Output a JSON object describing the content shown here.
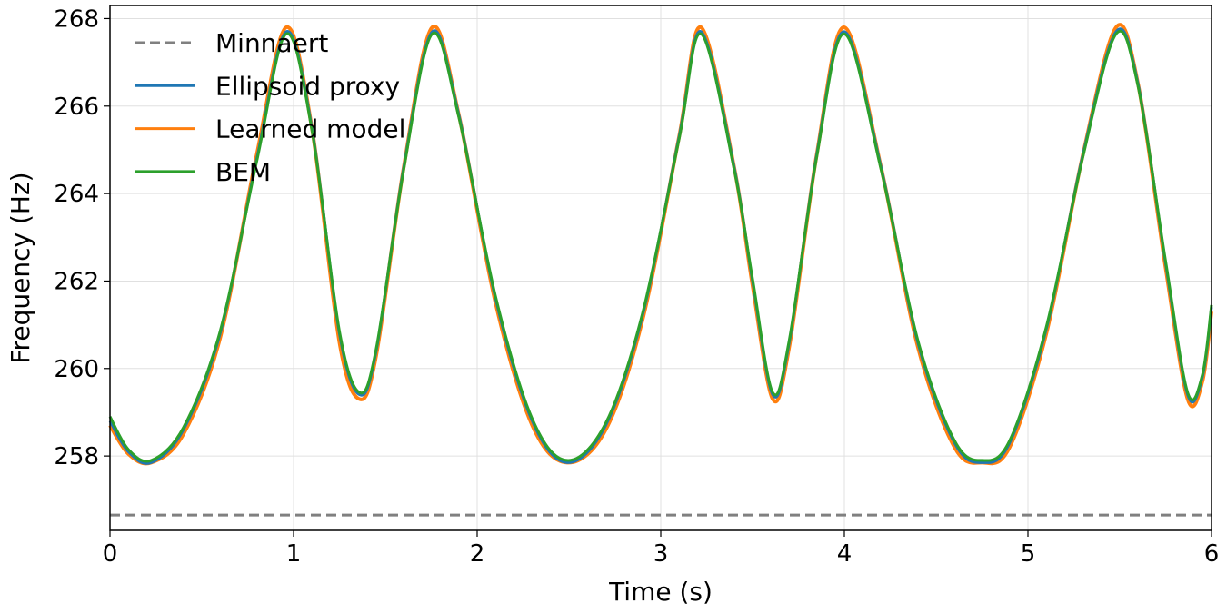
{
  "chart_data": {
    "type": "line",
    "xlabel": "Time (s)",
    "ylabel": "Frequency (Hz)",
    "xlim": [
      0,
      6
    ],
    "ylim": [
      256.3,
      268.3
    ],
    "xticks": [
      0,
      1,
      2,
      3,
      4,
      5,
      6
    ],
    "yticks": [
      258,
      260,
      262,
      264,
      266,
      268
    ],
    "grid": true,
    "legend_position": "top-left",
    "series": [
      {
        "name": "Minnaert",
        "color": "#808080",
        "style": "dashed",
        "x": [
          0,
          6
        ],
        "y": [
          256.65,
          256.65
        ]
      },
      {
        "name": "Ellipsoid proxy",
        "color": "#1f77b4",
        "style": "solid",
        "x": [
          0,
          0.1,
          0.225,
          0.4,
          0.6,
          0.8,
          0.96,
          1.1,
          1.25,
          1.36,
          1.45,
          1.6,
          1.755,
          1.9,
          2.1,
          2.3,
          2.49,
          2.7,
          2.9,
          3.1,
          3.22,
          3.4,
          3.5,
          3.61,
          3.7,
          3.85,
          4.0,
          4.2,
          4.4,
          4.6,
          4.75,
          4.9,
          5.1,
          5.3,
          5.48,
          5.6,
          5.75,
          5.87,
          5.95,
          6.0
        ],
        "y": [
          258.8,
          258.1,
          257.85,
          258.6,
          260.8,
          264.8,
          267.7,
          265.5,
          260.8,
          259.4,
          260.4,
          264.6,
          267.7,
          265.8,
          261.6,
          258.8,
          257.85,
          258.7,
          261.2,
          265.3,
          267.7,
          264.6,
          262.0,
          259.4,
          260.6,
          264.9,
          267.7,
          264.6,
          260.6,
          258.3,
          257.85,
          258.3,
          260.9,
          264.9,
          267.7,
          266.5,
          262.4,
          259.4,
          259.8,
          261.4
        ]
      },
      {
        "name": "Learned model",
        "color": "#ff7f0e",
        "style": "solid",
        "x": [
          0,
          0.1,
          0.225,
          0.4,
          0.6,
          0.8,
          0.96,
          1.1,
          1.25,
          1.36,
          1.45,
          1.6,
          1.755,
          1.9,
          2.1,
          2.3,
          2.49,
          2.7,
          2.9,
          3.1,
          3.22,
          3.4,
          3.5,
          3.61,
          3.7,
          3.85,
          4.0,
          4.2,
          4.4,
          4.6,
          4.75,
          4.9,
          5.1,
          5.3,
          5.48,
          5.6,
          5.75,
          5.87,
          5.95,
          6.0
        ],
        "y": [
          258.7,
          258.05,
          257.85,
          258.5,
          260.7,
          264.9,
          267.8,
          265.5,
          260.6,
          259.3,
          260.3,
          264.6,
          267.8,
          265.8,
          261.5,
          258.7,
          257.85,
          258.6,
          261.1,
          265.3,
          267.8,
          264.6,
          261.9,
          259.3,
          260.5,
          264.9,
          267.8,
          264.6,
          260.5,
          258.2,
          257.85,
          258.2,
          260.8,
          264.9,
          267.8,
          266.5,
          262.3,
          259.3,
          259.7,
          261.3
        ]
      },
      {
        "name": "BEM",
        "color": "#2ca02c",
        "style": "solid",
        "x": [
          0,
          0.1,
          0.225,
          0.4,
          0.6,
          0.8,
          0.96,
          1.1,
          1.25,
          1.36,
          1.45,
          1.6,
          1.755,
          1.9,
          2.1,
          2.3,
          2.49,
          2.7,
          2.9,
          3.1,
          3.22,
          3.4,
          3.5,
          3.61,
          3.7,
          3.85,
          4.0,
          4.2,
          4.4,
          4.6,
          4.75,
          4.9,
          5.1,
          5.3,
          5.48,
          5.6,
          5.75,
          5.87,
          5.95,
          6.0
        ],
        "y": [
          258.9,
          258.15,
          257.9,
          258.65,
          260.85,
          264.75,
          267.65,
          265.45,
          260.85,
          259.45,
          260.45,
          264.55,
          267.65,
          265.75,
          261.65,
          258.85,
          257.9,
          258.75,
          261.25,
          265.25,
          267.65,
          264.55,
          262.05,
          259.45,
          260.65,
          264.85,
          267.65,
          264.55,
          260.65,
          258.35,
          257.9,
          258.35,
          260.95,
          264.85,
          267.65,
          266.45,
          262.45,
          259.45,
          259.85,
          261.45
        ]
      }
    ]
  }
}
